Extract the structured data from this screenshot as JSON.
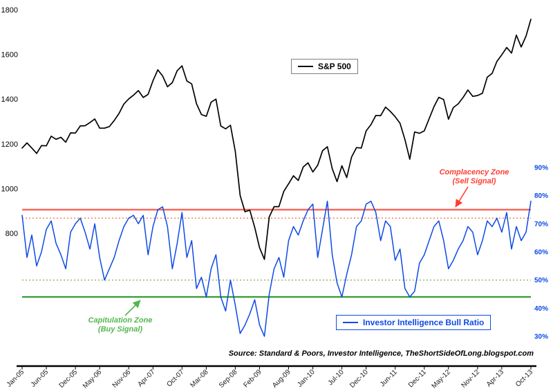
{
  "chart_data": {
    "type": "line",
    "title": "",
    "grid": false,
    "x_axis": {
      "start": "Jan-05",
      "end": "Oct-13",
      "interval": "monthly",
      "label_rotation_deg": -45
    },
    "x_count": 106,
    "x_tick_labels": [
      {
        "label": "Jan-05",
        "i": 0
      },
      {
        "label": "Jun-05",
        "i": 5
      },
      {
        "label": "Dec-05",
        "i": 11
      },
      {
        "label": "May-06",
        "i": 16
      },
      {
        "label": "Nov-06",
        "i": 22
      },
      {
        "label": "Apr-07",
        "i": 27
      },
      {
        "label": "Oct-07",
        "i": 33
      },
      {
        "label": "Mar-08",
        "i": 38
      },
      {
        "label": "Sep-08",
        "i": 44
      },
      {
        "label": "Feb-09",
        "i": 49
      },
      {
        "label": "Aug-09",
        "i": 55
      },
      {
        "label": "Jan-10",
        "i": 60
      },
      {
        "label": "Jul-10",
        "i": 66
      },
      {
        "label": "Dec-10",
        "i": 71
      },
      {
        "label": "Jun-11",
        "i": 77
      },
      {
        "label": "Dec-11",
        "i": 83
      },
      {
        "label": "May-12",
        "i": 88
      },
      {
        "label": "Nov-12",
        "i": 94
      },
      {
        "label": "Apr-13",
        "i": 99
      },
      {
        "label": "Oct-13",
        "i": 105
      }
    ],
    "left_axis": {
      "min": 800,
      "max": 1800,
      "ticks": [
        {
          "label": "1800",
          "value": 1800
        },
        {
          "label": "1600",
          "value": 1600
        },
        {
          "label": "1400",
          "value": 1400
        },
        {
          "label": "1200",
          "value": 1200
        },
        {
          "label": "1000",
          "value": 1000
        },
        {
          "label": "800",
          "value": 800
        }
      ]
    },
    "right_axis": {
      "min": 30,
      "max": 90,
      "unit": "%",
      "ticks": [
        {
          "label": "90%",
          "value": 90
        },
        {
          "label": "80%",
          "value": 80
        },
        {
          "label": "70%",
          "value": 70
        },
        {
          "label": "60%",
          "value": 60
        },
        {
          "label": "50%",
          "value": 50
        },
        {
          "label": "40%",
          "value": 40
        },
        {
          "label": "30%",
          "value": 30
        }
      ]
    },
    "series": [
      {
        "name": "S&P 500",
        "axis": "left",
        "color": "#000000",
        "values": [
          1181,
          1204,
          1181,
          1157,
          1192,
          1191,
          1234,
          1220,
          1229,
          1207,
          1249,
          1248,
          1280,
          1281,
          1295,
          1311,
          1270,
          1270,
          1277,
          1304,
          1336,
          1378,
          1401,
          1418,
          1438,
          1407,
          1421,
          1482,
          1531,
          1503,
          1455,
          1474,
          1527,
          1549,
          1481,
          1468,
          1379,
          1331,
          1323,
          1386,
          1400,
          1280,
          1267,
          1283,
          1166,
          969,
          896,
          903,
          826,
          735,
          683,
          873,
          919,
          919,
          987,
          1021,
          1057,
          1036,
          1096,
          1115,
          1074,
          1104,
          1169,
          1187,
          1089,
          1031,
          1102,
          1049,
          1141,
          1183,
          1181,
          1258,
          1286,
          1327,
          1326,
          1364,
          1345,
          1321,
          1292,
          1219,
          1131,
          1253,
          1247,
          1258,
          1312,
          1366,
          1408,
          1398,
          1310,
          1362,
          1379,
          1407,
          1441,
          1412,
          1416,
          1426,
          1498,
          1515,
          1569,
          1598,
          1631,
          1606,
          1686,
          1633,
          1682,
          1757
        ]
      },
      {
        "name": "Investor Intelligence Bull Ratio",
        "axis": "right",
        "color": "#0c49e6",
        "values": [
          73,
          58,
          66,
          55,
          60,
          68,
          71,
          63,
          59,
          54,
          67,
          70,
          72,
          67,
          61,
          70,
          58,
          50,
          54,
          58,
          64,
          69,
          72,
          73,
          70,
          73,
          59,
          69,
          75,
          76,
          69,
          54,
          63,
          74,
          58,
          64,
          47,
          51,
          44,
          54,
          59,
          44,
          39,
          50,
          41,
          31,
          34,
          38,
          43,
          34,
          30,
          45,
          54,
          58,
          51,
          64,
          69,
          66,
          71,
          75,
          77,
          58,
          68,
          78,
          59,
          49,
          44,
          52,
          59,
          69,
          71,
          77,
          78,
          74,
          64,
          71,
          69,
          57,
          61,
          47,
          44,
          46,
          56,
          59,
          64,
          69,
          71,
          64,
          54,
          57,
          61,
          64,
          69,
          67,
          59,
          64,
          71,
          69,
          72,
          67,
          74,
          61,
          69,
          64,
          67,
          78
        ]
      }
    ],
    "reference_lines": [
      {
        "name": "complacency-sell-level",
        "axis": "right",
        "value": 75,
        "style": "solid",
        "color": "#f8695a"
      },
      {
        "name": "complacency-dotted-level",
        "axis": "right",
        "value": 72,
        "style": "dotted",
        "color": "#ef7a4d"
      },
      {
        "name": "capitulation-dotted-level",
        "axis": "right",
        "value": 50,
        "style": "dotted",
        "color": "#8fad63"
      },
      {
        "name": "capitulation-buy-level",
        "axis": "right",
        "value": 44,
        "style": "solid",
        "color": "#3a9e3a"
      }
    ],
    "legend_positions": {
      "sp500": "top-center",
      "bull_ratio": "bottom-right"
    }
  },
  "annotations": {
    "complacency": {
      "line1": "Complacency Zone",
      "line2": "(Sell Signal)",
      "color": "#ff3d2e"
    },
    "capitulation": {
      "line1": "Capitulation Zone",
      "line2": "(Buy Signal)",
      "color": "#52b84d"
    }
  },
  "source_note": "Source: Standard & Poors, Investor Intelligence, TheShortSideOfLong.blogspot.com"
}
